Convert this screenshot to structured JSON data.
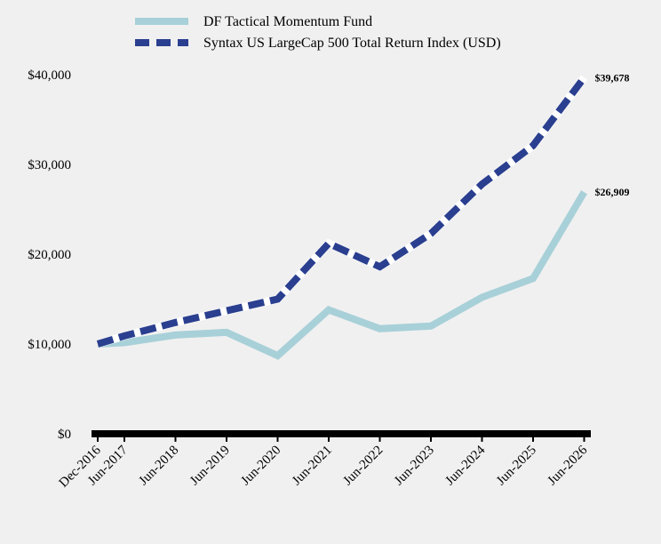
{
  "chart_data": {
    "type": "line",
    "x": [
      "Dec-2016",
      "Jun-2017",
      "Jun-2018",
      "Jun-2019",
      "Jun-2020",
      "Jun-2021",
      "Jun-2022",
      "Jun-2023",
      "Jun-2024",
      "Jun-2025",
      "Jun-2026"
    ],
    "series": [
      {
        "name": "DF Tactical Momentum Fund",
        "color": "#a8d0d8",
        "style": "solid",
        "values": [
          10000,
          10150,
          11000,
          11300,
          8700,
          13800,
          11700,
          12000,
          15200,
          17300,
          26909
        ],
        "end_label": "$26,909"
      },
      {
        "name": "Syntax US LargeCap 500 Total Return Index (USD)",
        "color": "#2a3f8f",
        "style": "dashed",
        "values": [
          10000,
          10900,
          12400,
          13700,
          15000,
          21200,
          18600,
          22300,
          27800,
          32100,
          39678
        ],
        "end_label": "$39,678"
      }
    ],
    "y_ticks": [
      0,
      10000,
      20000,
      30000,
      40000
    ],
    "y_tick_labels": [
      "$0",
      "$10,000",
      "$20,000",
      "$30,000",
      "$40,000"
    ],
    "ylim": [
      0,
      40000
    ],
    "grid": false,
    "legend": "top-left",
    "title": "",
    "xlabel": "",
    "ylabel": ""
  }
}
